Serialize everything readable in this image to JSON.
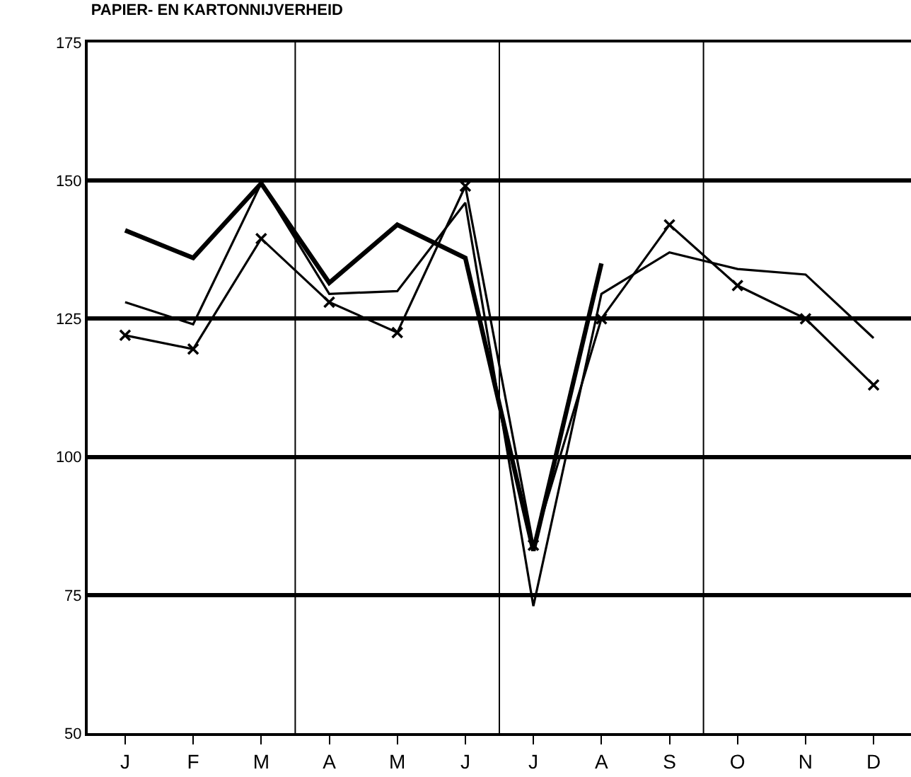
{
  "chart_data": {
    "type": "line",
    "title": "PAPIER- EN KARTONNIJVERHEID",
    "categories": [
      "J",
      "F",
      "M",
      "A",
      "M",
      "J",
      "J",
      "A",
      "S",
      "O",
      "N",
      "D"
    ],
    "series": [
      {
        "color": "#000000",
        "values": [
          141,
          136,
          149.5,
          131.5,
          142,
          136,
          83,
          135,
          null,
          null,
          null,
          null
        ]
      },
      {
        "color": "#000000",
        "values": [
          128,
          124,
          149.5,
          129.5,
          130,
          146,
          73,
          129.5,
          137,
          134,
          133,
          121.5
        ]
      },
      {
        "color": "#000000",
        "marker": "cross",
        "values": [
          122,
          119.5,
          139.5,
          128,
          122.5,
          149,
          84,
          125,
          142,
          131,
          125,
          113
        ]
      }
    ],
    "ylim": [
      50,
      175
    ],
    "yticks": [
      50,
      75,
      100,
      125,
      150,
      175
    ],
    "grid": "y",
    "marker": "none",
    "line_style": "solid"
  }
}
